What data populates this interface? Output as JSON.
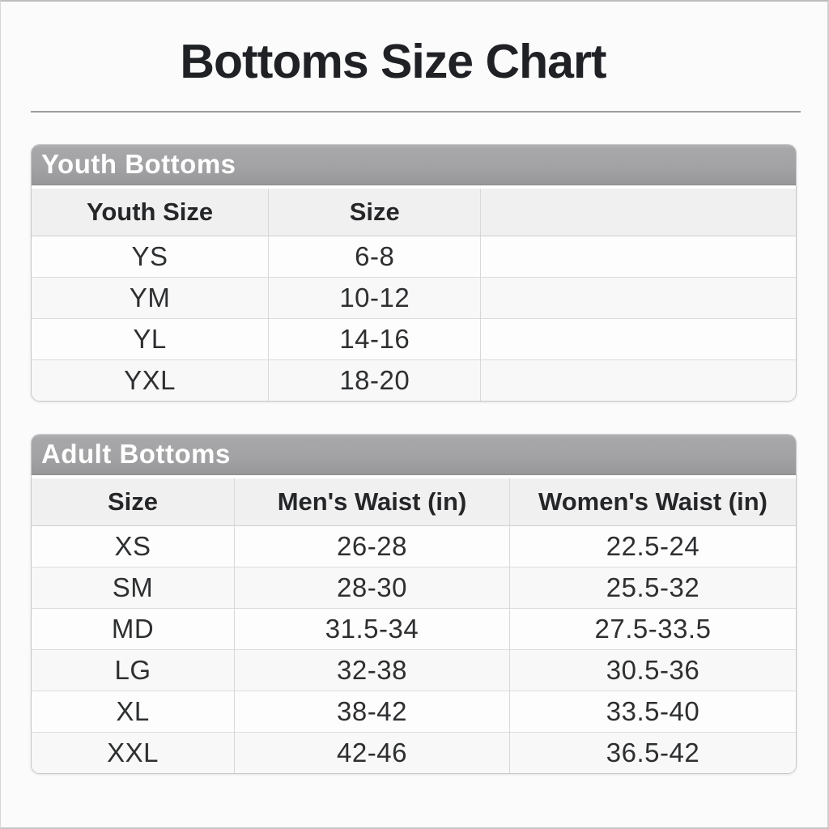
{
  "page": {
    "title": "Bottoms Size Chart"
  },
  "tables": [
    {
      "title": "Youth Bottoms",
      "columns": [
        "Youth Size",
        "Size",
        ""
      ],
      "rows": [
        [
          "YS",
          "6-8",
          ""
        ],
        [
          "YM",
          "10-12",
          ""
        ],
        [
          "YL",
          "14-16",
          ""
        ],
        [
          "YXL",
          "18-20",
          ""
        ]
      ]
    },
    {
      "title": "Adult Bottoms",
      "columns": [
        "Size",
        "Men's Waist (in)",
        "Women's Waist (in)"
      ],
      "rows": [
        [
          "XS",
          "26-28",
          "22.5-24"
        ],
        [
          "SM",
          "28-30",
          "25.5-32"
        ],
        [
          "MD",
          "31.5-34",
          "27.5-33.5"
        ],
        [
          "LG",
          "32-38",
          "30.5-36"
        ],
        [
          "XL",
          "38-42",
          "33.5-40"
        ],
        [
          "XXL",
          "42-46",
          "36.5-42"
        ]
      ]
    }
  ],
  "colors": {
    "page_background": "#fbfbfb",
    "banner_gray": "#a3a3a5",
    "banner_text": "#ffffff",
    "header_row_bg": "#f1f0f1",
    "row_bg": "#fdfdfd",
    "row_alt_bg": "#f8f8f8",
    "grid_line": "#d8d8da",
    "title_text": "#1f2125",
    "body_text": "#2d2f31",
    "title_rule": "#9c9c9e"
  }
}
